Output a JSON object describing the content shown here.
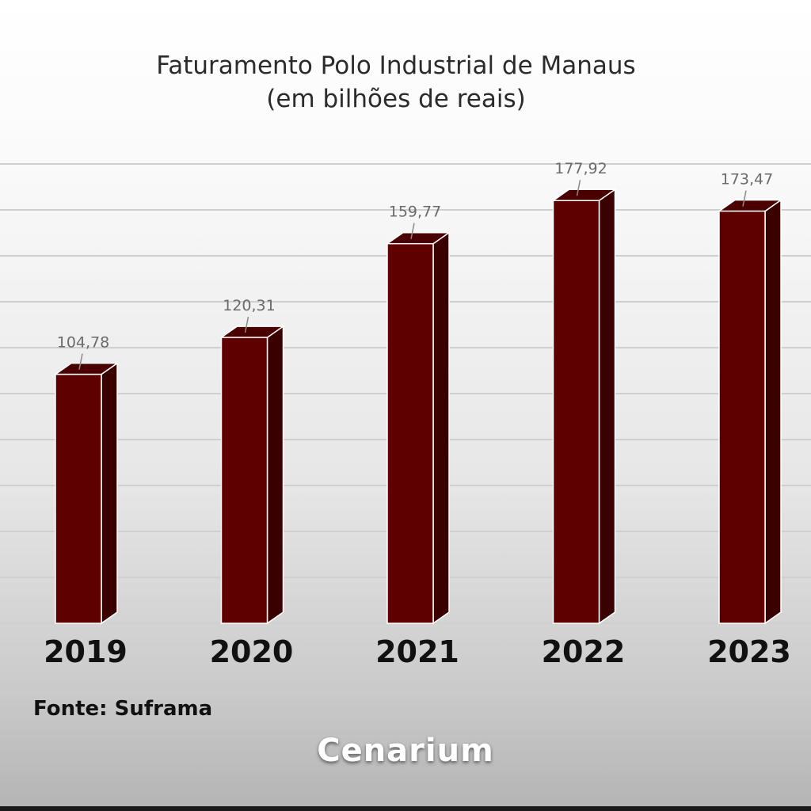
{
  "chart_data": {
    "type": "bar",
    "title": "Faturamento Polo Industrial de Manaus",
    "subtitle": "(em bilhões de reais)",
    "categories": [
      "2019",
      "2020",
      "2021",
      "2022",
      "2023"
    ],
    "values": [
      104.78,
      120.31,
      159.77,
      177.92,
      173.47
    ],
    "data_labels": [
      "104,78",
      "120,31",
      "159,77",
      "177,92",
      "173,47"
    ],
    "ylim": [
      0,
      200
    ],
    "grid": true,
    "bar_color": "#5e0000"
  },
  "source": "Fonte: Suframa",
  "brand": "Cenarium"
}
